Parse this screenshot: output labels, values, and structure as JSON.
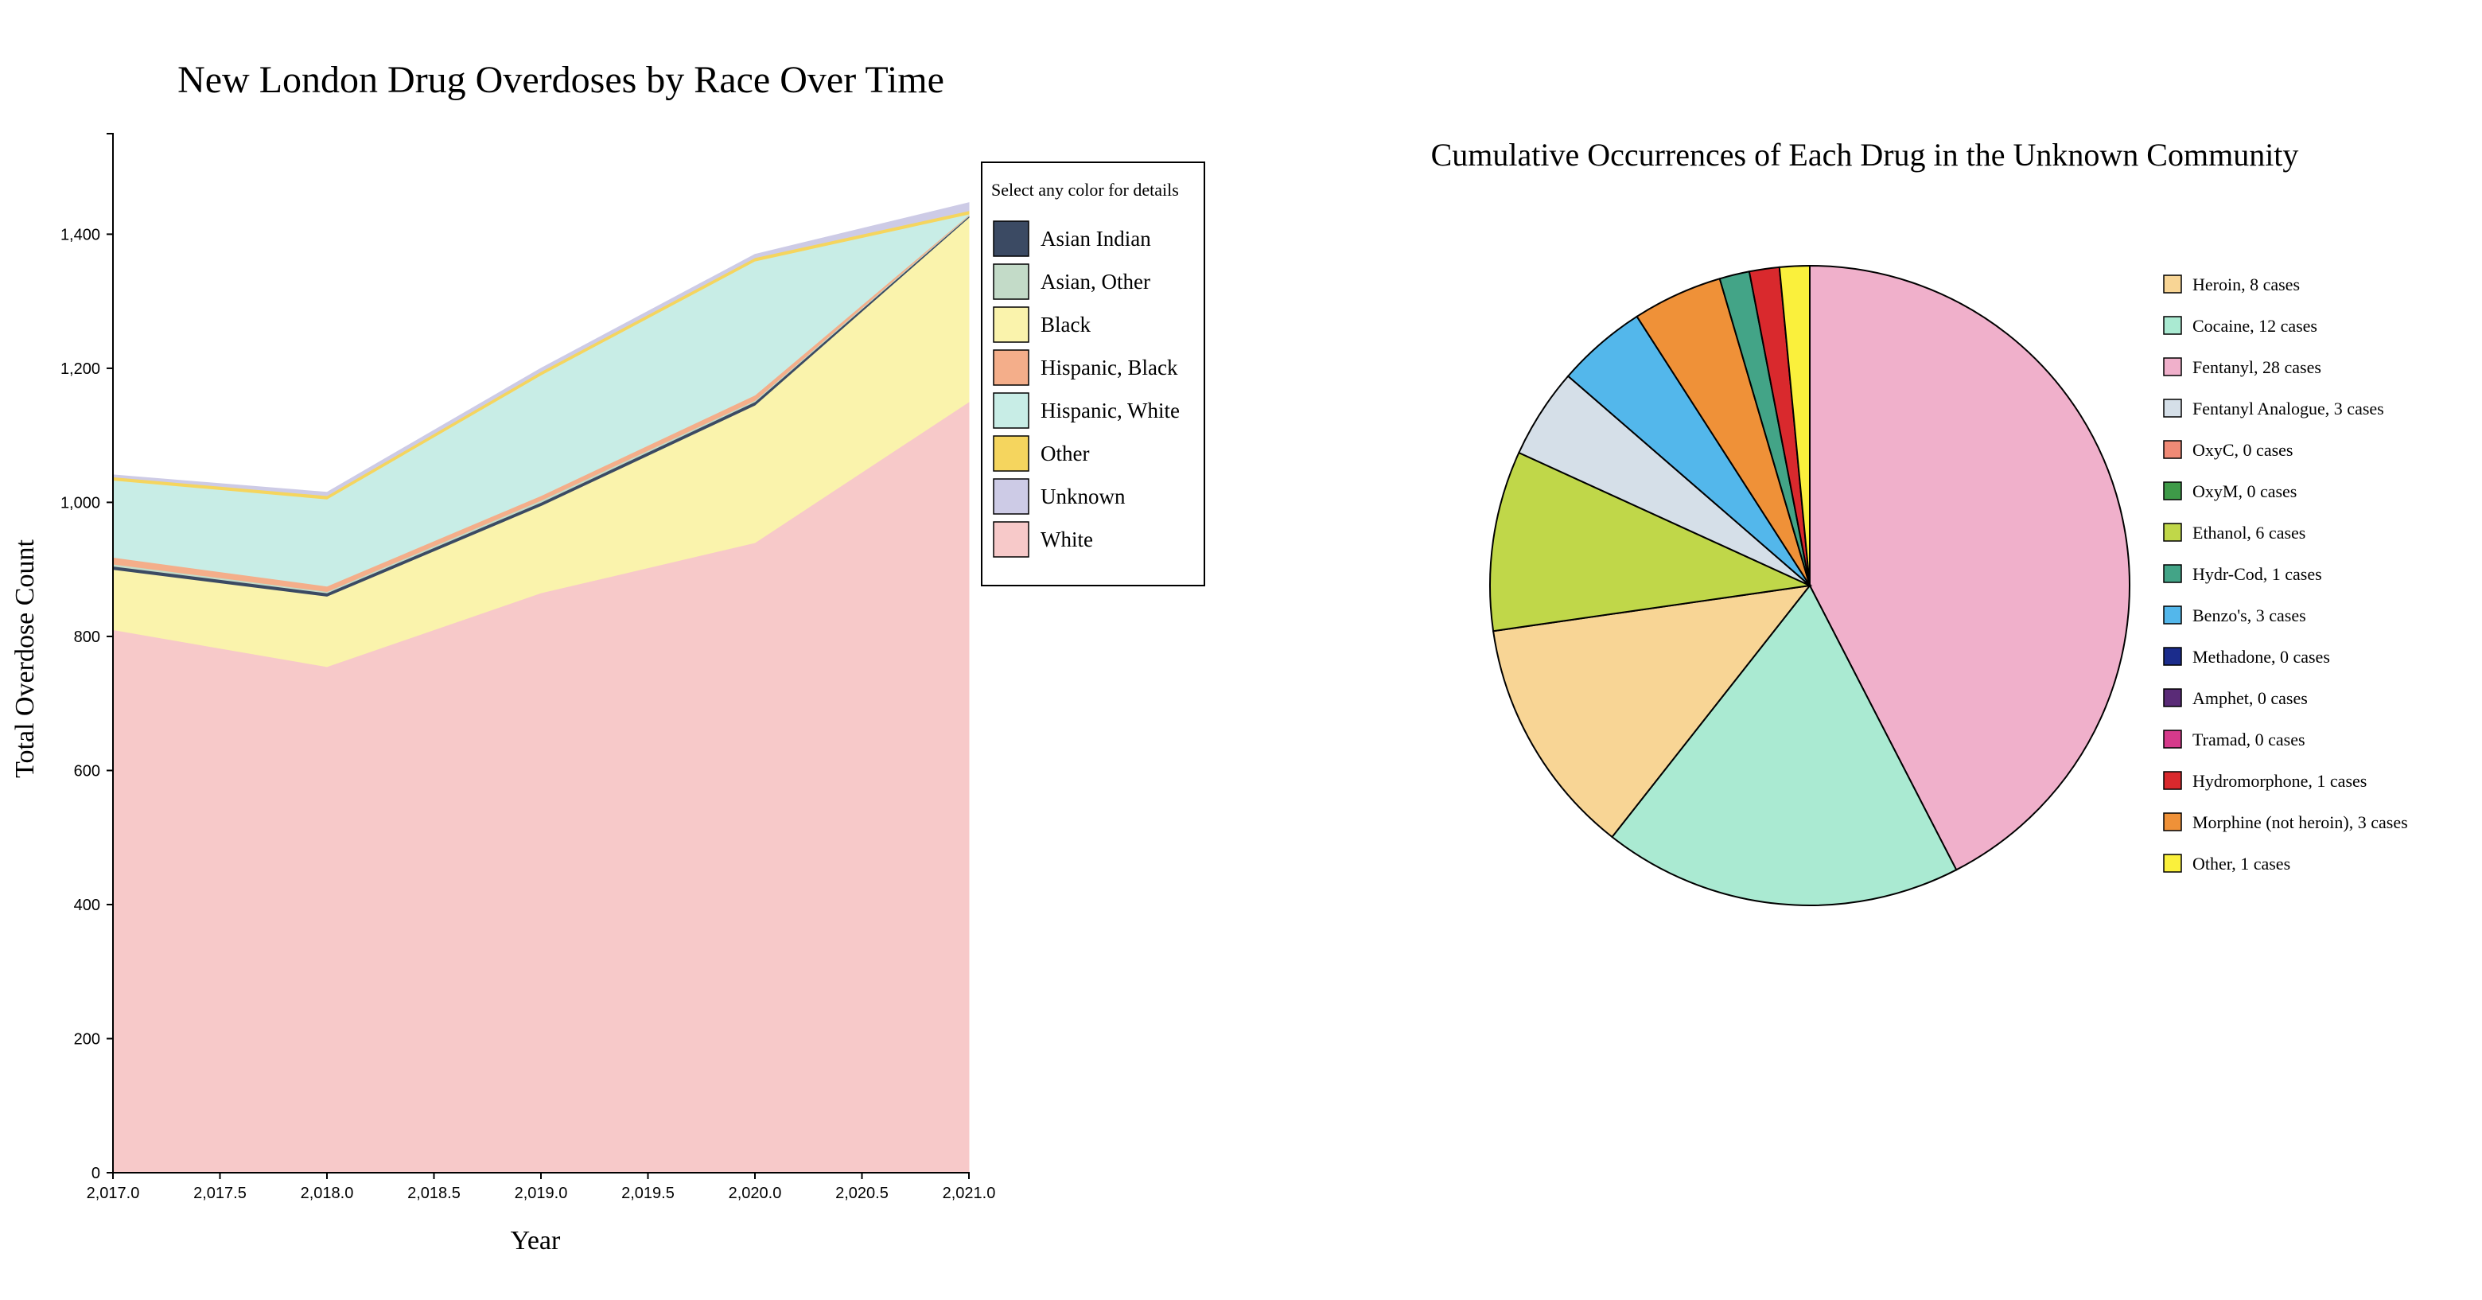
{
  "chart_data": [
    {
      "type": "area",
      "stacked": true,
      "title": "New London Drug Overdoses by Race Over Time",
      "xlabel": "Year",
      "ylabel": "Total Overdose Count",
      "x": [
        2017,
        2018,
        2019,
        2020,
        2021
      ],
      "xlim": [
        2017,
        2021
      ],
      "ylim": [
        0,
        1550
      ],
      "x_ticks": [
        2017,
        2017.5,
        2018,
        2018.5,
        2019,
        2019.5,
        2020,
        2020.5,
        2021
      ],
      "x_tick_labels": [
        "2,017.0",
        "2,017.5",
        "2,018.0",
        "2,018.5",
        "2,019.0",
        "2,019.5",
        "2,020.0",
        "2,020.5",
        "2,021.0"
      ],
      "y_ticks": [
        0,
        200,
        400,
        600,
        800,
        1000,
        1200,
        1400
      ],
      "y_tick_labels": [
        "0",
        "200",
        "400",
        "600",
        "800",
        "1,000",
        "1,200",
        "1,400"
      ],
      "grid": false,
      "legend_title": "Select any color for details",
      "legend_position": "top-right",
      "series": [
        {
          "name": "White",
          "color": "#f7c9c9",
          "values": [
            810,
            755,
            865,
            940,
            1150
          ]
        },
        {
          "name": "Black",
          "color": "#faf3ac",
          "values": [
            90,
            105,
            130,
            205,
            275
          ]
        },
        {
          "name": "Asian Indian",
          "color": "#3b4a63",
          "values": [
            5,
            5,
            5,
            5,
            2
          ]
        },
        {
          "name": "Asian, Other",
          "color": "#c3dbc8",
          "values": [
            3,
            2,
            3,
            2,
            1
          ]
        },
        {
          "name": "Hispanic, Black",
          "color": "#f4ae8a",
          "values": [
            10,
            8,
            7,
            8,
            1
          ]
        },
        {
          "name": "Hispanic, White",
          "color": "#c8ede6",
          "values": [
            115,
            130,
            180,
            200,
            1
          ]
        },
        {
          "name": "Other",
          "color": "#f5d55e",
          "values": [
            5,
            5,
            5,
            5,
            5
          ]
        },
        {
          "name": "Unknown",
          "color": "#cdcbe6",
          "values": [
            3,
            5,
            5,
            5,
            12
          ]
        }
      ],
      "legend_order": [
        "Asian Indian",
        "Asian, Other",
        "Black",
        "Hispanic, Black",
        "Hispanic, White",
        "Other",
        "Unknown",
        "White"
      ]
    },
    {
      "type": "pie",
      "title": "Cumulative Occurrences of Each Drug in the Unknown Community",
      "legend_position": "right",
      "slices": [
        {
          "label": "Heroin, 8 cases",
          "value": 8,
          "color": "#f8d595"
        },
        {
          "label": "Cocaine, 12 cases",
          "value": 12,
          "color": "#aaead2"
        },
        {
          "label": "Fentanyl, 28 cases",
          "value": 28,
          "color": "#f0b0cb"
        },
        {
          "label": "Fentanyl Analogue, 3 cases",
          "value": 3,
          "color": "#d5dfe8"
        },
        {
          "label": "OxyC, 0 cases",
          "value": 0,
          "color": "#f08a76"
        },
        {
          "label": "OxyM, 0 cases",
          "value": 0,
          "color": "#3e9a48"
        },
        {
          "label": "Ethanol, 6 cases",
          "value": 6,
          "color": "#c0d749"
        },
        {
          "label": "Hydr-Cod, 1 cases",
          "value": 1,
          "color": "#43a487"
        },
        {
          "label": "Benzo's, 3 cases",
          "value": 3,
          "color": "#53b7eb"
        },
        {
          "label": "Methadone, 0 cases",
          "value": 0,
          "color": "#1b2c8c"
        },
        {
          "label": "Amphet, 0 cases",
          "value": 0,
          "color": "#5a2b77"
        },
        {
          "label": "Tramad, 0 cases",
          "value": 0,
          "color": "#d63a8b"
        },
        {
          "label": "Hydromorphone, 1 cases",
          "value": 1,
          "color": "#d9292d"
        },
        {
          "label": "Morphine (not heroin), 3 cases",
          "value": 3,
          "color": "#ef9138"
        },
        {
          "label": "Other, 1 cases",
          "value": 1,
          "color": "#faf03c"
        }
      ],
      "draw_order": [
        "Fentanyl, 28 cases",
        "Cocaine, 12 cases",
        "Heroin, 8 cases",
        "Ethanol, 6 cases",
        "Fentanyl Analogue, 3 cases",
        "Benzo's, 3 cases",
        "Morphine (not heroin), 3 cases",
        "Hydr-Cod, 1 cases",
        "Hydromorphone, 1 cases",
        "Other, 1 cases"
      ]
    }
  ]
}
